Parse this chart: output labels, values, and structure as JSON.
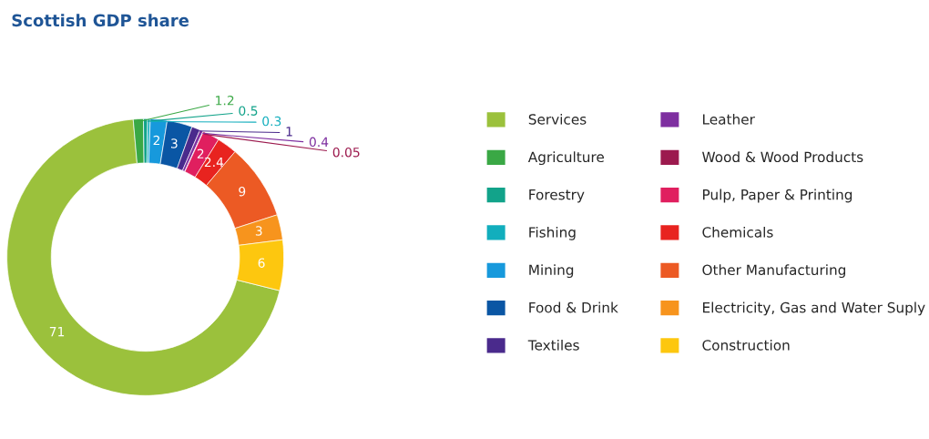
{
  "chart_data": {
    "type": "donut",
    "title": "Scottish GDP share",
    "categories": [
      "Services",
      "Agriculture",
      "Forestry",
      "Fishing",
      "Mining",
      "Food & Drink",
      "Textiles",
      "Leather",
      "Wood & Wood Products",
      "Pulp, Paper & Printing",
      "Chemicals",
      "Other Manufacturing",
      "Electricity, Gas and Water Suply",
      "Construction"
    ],
    "values": [
      71,
      1.2,
      0.5,
      0.3,
      2,
      3,
      1,
      0.4,
      0.05,
      2,
      2.4,
      9,
      3,
      6
    ],
    "colors": [
      "#9bc13c",
      "#3aa845",
      "#12a38a",
      "#12aebd",
      "#1799dc",
      "#0a56a4",
      "#4a2a8c",
      "#7e2fa0",
      "#9c1a4e",
      "#e01f5f",
      "#e8231f",
      "#ec5a24",
      "#f7941d",
      "#fdc70f"
    ],
    "data_labels": true,
    "legend": "right"
  }
}
